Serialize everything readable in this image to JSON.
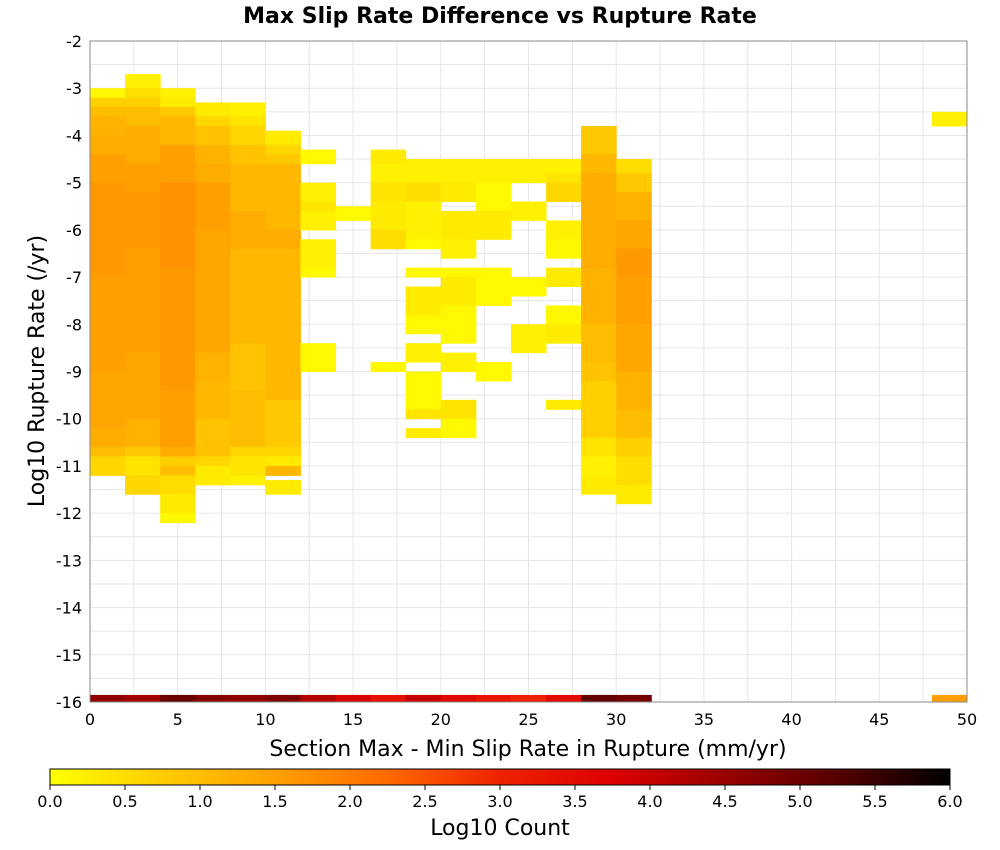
{
  "chart_data": {
    "type": "heatmap",
    "title": "Max Slip Rate Difference vs Rupture Rate",
    "xlabel": "Section Max - Min Slip Rate in Rupture (mm/yr)",
    "ylabel": "Log10 Rupture Rate (/yr)",
    "xlim": [
      0,
      50
    ],
    "ylim": [
      -16,
      -2
    ],
    "x_ticks": [
      "0",
      "5",
      "10",
      "15",
      "20",
      "25",
      "30",
      "35",
      "40",
      "45",
      "50"
    ],
    "y_ticks": [
      "-16",
      "-15",
      "-14",
      "-13",
      "-12",
      "-11",
      "-10",
      "-9",
      "-8",
      "-7",
      "-6",
      "-5",
      "-4",
      "-3",
      "-2"
    ],
    "x_bin_width": 2,
    "y_bin_width": 0.2,
    "grid": true,
    "colorbar": {
      "label": "Log10 Count",
      "range": [
        0,
        6
      ],
      "ticks": [
        "0.0",
        "0.5",
        "1.0",
        "1.5",
        "2.0",
        "2.5",
        "3.0",
        "3.5",
        "4.0",
        "4.5",
        "5.0",
        "5.5",
        "6.0"
      ],
      "colors": [
        "#ffff00",
        "#ffcc00",
        "#ffa000",
        "#ff6a00",
        "#ee2200",
        "#dd0000",
        "#990000",
        "#550000",
        "#000000"
      ]
    },
    "columns": [
      {
        "x0": 0,
        "segments": [
          [
            -3.2,
            -3.0,
            0.1
          ],
          [
            -3.4,
            -3.2,
            0.7
          ],
          [
            -3.6,
            -3.4,
            1.0
          ],
          [
            -4.0,
            -3.6,
            1.2
          ],
          [
            -4.4,
            -4.0,
            1.3
          ],
          [
            -5.0,
            -4.4,
            1.5
          ],
          [
            -7.0,
            -5.0,
            1.6
          ],
          [
            -9.0,
            -7.0,
            1.5
          ],
          [
            -10.2,
            -9.0,
            1.4
          ],
          [
            -10.6,
            -10.2,
            1.3
          ],
          [
            -10.8,
            -10.6,
            1.0
          ],
          [
            -11.2,
            -10.8,
            0.6
          ]
        ]
      },
      {
        "x0": 2,
        "segments": [
          [
            -3.0,
            -2.7,
            0.2
          ],
          [
            -3.2,
            -3.0,
            0.5
          ],
          [
            -3.4,
            -3.2,
            0.7
          ],
          [
            -3.8,
            -3.4,
            1.0
          ],
          [
            -4.6,
            -3.8,
            1.3
          ],
          [
            -5.2,
            -4.6,
            1.5
          ],
          [
            -6.4,
            -5.2,
            1.6
          ],
          [
            -8.6,
            -6.4,
            1.5
          ],
          [
            -10.0,
            -8.6,
            1.4
          ],
          [
            -10.6,
            -10.0,
            1.2
          ],
          [
            -10.8,
            -10.6,
            0.8
          ],
          [
            -11.2,
            -10.8,
            0.4
          ],
          [
            -11.6,
            -11.2,
            0.6
          ]
        ]
      },
      {
        "x0": 4,
        "segments": [
          [
            -3.2,
            -3.0,
            0.2
          ],
          [
            -3.4,
            -3.2,
            0.3
          ],
          [
            -3.6,
            -3.4,
            0.8
          ],
          [
            -4.2,
            -3.6,
            1.1
          ],
          [
            -5.0,
            -4.2,
            1.5
          ],
          [
            -6.8,
            -5.0,
            1.7
          ],
          [
            -9.4,
            -6.8,
            1.6
          ],
          [
            -10.6,
            -9.4,
            1.5
          ],
          [
            -10.8,
            -10.6,
            1.3
          ],
          [
            -11.0,
            -10.8,
            0.7
          ],
          [
            -11.2,
            -11.0,
            1.0
          ],
          [
            -11.6,
            -11.2,
            0.5
          ],
          [
            -12.0,
            -11.6,
            0.3
          ],
          [
            -12.2,
            -12.0,
            0.1
          ]
        ]
      },
      {
        "x0": 6,
        "segments": [
          [
            -3.6,
            -3.3,
            0.3
          ],
          [
            -3.8,
            -3.6,
            0.6
          ],
          [
            -4.2,
            -3.8,
            0.9
          ],
          [
            -4.6,
            -4.2,
            1.2
          ],
          [
            -5.0,
            -4.6,
            1.3
          ],
          [
            -6.0,
            -5.0,
            1.5
          ],
          [
            -8.6,
            -6.0,
            1.4
          ],
          [
            -9.2,
            -8.6,
            1.2
          ],
          [
            -10.0,
            -9.2,
            1.1
          ],
          [
            -10.8,
            -10.0,
            0.9
          ],
          [
            -11.0,
            -10.8,
            0.6
          ],
          [
            -11.4,
            -11.0,
            0.3
          ]
        ]
      },
      {
        "x0": 8,
        "segments": [
          [
            -3.6,
            -3.3,
            0.2
          ],
          [
            -3.8,
            -3.6,
            0.4
          ],
          [
            -4.2,
            -3.8,
            0.6
          ],
          [
            -4.6,
            -4.2,
            0.9
          ],
          [
            -5.6,
            -4.6,
            1.1
          ],
          [
            -6.4,
            -5.6,
            1.3
          ],
          [
            -8.4,
            -6.4,
            1.1
          ],
          [
            -9.4,
            -8.4,
            0.9
          ],
          [
            -10.6,
            -9.4,
            1.0
          ],
          [
            -10.8,
            -10.6,
            0.6
          ],
          [
            -11.2,
            -10.8,
            0.4
          ],
          [
            -11.4,
            -11.2,
            0.2
          ]
        ]
      },
      {
        "x0": 10,
        "segments": [
          [
            -4.2,
            -3.9,
            0.3
          ],
          [
            -4.4,
            -4.2,
            0.6
          ],
          [
            -4.6,
            -4.4,
            0.8
          ],
          [
            -6.0,
            -4.6,
            1.1
          ],
          [
            -6.4,
            -6.0,
            1.3
          ],
          [
            -9.6,
            -6.4,
            1.1
          ],
          [
            -10.6,
            -9.6,
            0.8
          ],
          [
            -10.8,
            -10.6,
            0.6
          ],
          [
            -11.0,
            -10.8,
            0.3
          ],
          [
            -11.2,
            -11.0,
            1.1
          ],
          [
            -11.6,
            -11.3,
            0.3
          ]
        ]
      },
      {
        "x0": 12,
        "segments": [
          [
            -4.6,
            -4.3,
            0.1
          ],
          [
            -5.4,
            -5.0,
            0.2
          ],
          [
            -5.6,
            -5.4,
            0.4
          ],
          [
            -6.0,
            -5.6,
            0.2
          ],
          [
            -6.8,
            -6.2,
            0.2
          ],
          [
            -7.0,
            -6.8,
            0.1
          ],
          [
            -9.0,
            -8.4,
            0.1
          ]
        ]
      },
      {
        "x0": 14,
        "segments": [
          [
            -5.8,
            -5.5,
            0.1
          ]
        ]
      },
      {
        "x0": 16,
        "segments": [
          [
            -4.6,
            -4.3,
            0.3
          ],
          [
            -5.0,
            -4.6,
            0.2
          ],
          [
            -5.4,
            -5.0,
            0.4
          ],
          [
            -6.0,
            -5.4,
            0.3
          ],
          [
            -6.4,
            -6.0,
            0.5
          ],
          [
            -9.0,
            -8.8,
            0.1
          ]
        ]
      },
      {
        "x0": 18,
        "segments": [
          [
            -5.0,
            -4.5,
            0.2
          ],
          [
            -5.4,
            -5.0,
            0.5
          ],
          [
            -6.2,
            -5.4,
            0.2
          ],
          [
            -6.4,
            -6.2,
            0.1
          ],
          [
            -7.0,
            -6.8,
            0.1
          ],
          [
            -7.8,
            -7.2,
            0.3
          ],
          [
            -8.2,
            -7.8,
            0.1
          ],
          [
            -8.8,
            -8.4,
            0.2
          ],
          [
            -9.2,
            -9.0,
            0.1
          ],
          [
            -9.8,
            -9.2,
            0.1
          ],
          [
            -10.0,
            -9.8,
            0.4
          ],
          [
            -10.4,
            -10.2,
            0.3
          ]
        ]
      },
      {
        "x0": 20,
        "segments": [
          [
            -5.0,
            -4.5,
            0.2
          ],
          [
            -5.4,
            -5.0,
            0.3
          ],
          [
            -6.2,
            -5.6,
            0.3
          ],
          [
            -6.6,
            -6.2,
            0.2
          ],
          [
            -7.0,
            -6.8,
            0.1
          ],
          [
            -7.6,
            -7.0,
            0.3
          ],
          [
            -8.0,
            -7.6,
            0.1
          ],
          [
            -8.4,
            -8.0,
            0.1
          ],
          [
            -9.0,
            -8.6,
            0.2
          ],
          [
            -10.0,
            -9.6,
            0.4
          ],
          [
            -10.4,
            -10.0,
            0.1
          ]
        ]
      },
      {
        "x0": 22,
        "segments": [
          [
            -5.0,
            -4.5,
            0.2
          ],
          [
            -5.6,
            -5.0,
            0.1
          ],
          [
            -6.2,
            -5.6,
            0.3
          ],
          [
            -7.0,
            -6.8,
            0.1
          ],
          [
            -7.6,
            -7.0,
            0.1
          ],
          [
            -9.2,
            -8.8,
            0.1
          ]
        ]
      },
      {
        "x0": 24,
        "segments": [
          [
            -5.0,
            -4.5,
            0.2
          ],
          [
            -5.8,
            -5.4,
            0.2
          ],
          [
            -7.4,
            -7.0,
            0.1
          ],
          [
            -8.2,
            -8.0,
            0.2
          ],
          [
            -8.6,
            -8.2,
            0.2
          ]
        ]
      },
      {
        "x0": 26,
        "segments": [
          [
            -4.8,
            -4.5,
            0.2
          ],
          [
            -5.0,
            -4.8,
            0.4
          ],
          [
            -5.4,
            -5.0,
            0.6
          ],
          [
            -6.2,
            -5.8,
            0.2
          ],
          [
            -6.6,
            -6.2,
            0.1
          ],
          [
            -7.2,
            -6.8,
            0.3
          ],
          [
            -8.0,
            -7.6,
            0.1
          ],
          [
            -8.4,
            -8.0,
            0.3
          ],
          [
            -9.8,
            -9.6,
            0.3
          ]
        ]
      },
      {
        "x0": 28,
        "segments": [
          [
            -4.4,
            -3.8,
            0.8
          ],
          [
            -4.8,
            -4.4,
            1.1
          ],
          [
            -6.8,
            -4.8,
            1.3
          ],
          [
            -8.0,
            -6.8,
            1.2
          ],
          [
            -8.8,
            -8.0,
            1.0
          ],
          [
            -9.2,
            -8.8,
            0.9
          ],
          [
            -10.4,
            -9.2,
            0.7
          ],
          [
            -10.8,
            -10.4,
            0.4
          ],
          [
            -11.2,
            -10.8,
            0.2
          ],
          [
            -11.6,
            -11.2,
            0.3
          ]
        ]
      },
      {
        "x0": 30,
        "segments": [
          [
            -4.8,
            -4.5,
            0.5
          ],
          [
            -5.2,
            -4.8,
            0.8
          ],
          [
            -5.8,
            -5.2,
            1.2
          ],
          [
            -6.4,
            -5.8,
            1.4
          ],
          [
            -7.0,
            -6.4,
            1.6
          ],
          [
            -8.0,
            -7.0,
            1.5
          ],
          [
            -9.0,
            -8.0,
            1.4
          ],
          [
            -9.8,
            -9.0,
            1.2
          ],
          [
            -10.4,
            -9.8,
            1.0
          ],
          [
            -10.8,
            -10.4,
            0.7
          ],
          [
            -11.4,
            -10.8,
            0.5
          ],
          [
            -11.8,
            -11.4,
            0.3
          ]
        ]
      },
      {
        "x0": 48,
        "segments": [
          [
            -3.8,
            -3.5,
            0.2
          ]
        ]
      }
    ],
    "bottom_row": {
      "y0": -16.0,
      "y1": -15.85,
      "cells": [
        {
          "x0": 0,
          "value": 4.6
        },
        {
          "x0": 2,
          "value": 4.4
        },
        {
          "x0": 4,
          "value": 5.0
        },
        {
          "x0": 6,
          "value": 4.7
        },
        {
          "x0": 8,
          "value": 4.6
        },
        {
          "x0": 10,
          "value": 4.8
        },
        {
          "x0": 12,
          "value": 4.2
        },
        {
          "x0": 14,
          "value": 3.8
        },
        {
          "x0": 16,
          "value": 3.4
        },
        {
          "x0": 18,
          "value": 4.0
        },
        {
          "x0": 20,
          "value": 3.6
        },
        {
          "x0": 22,
          "value": 3.3
        },
        {
          "x0": 24,
          "value": 3.0
        },
        {
          "x0": 26,
          "value": 3.5
        },
        {
          "x0": 28,
          "value": 5.1
        },
        {
          "x0": 30,
          "value": 4.9
        },
        {
          "x0": 48,
          "value": 1.5
        }
      ]
    }
  }
}
